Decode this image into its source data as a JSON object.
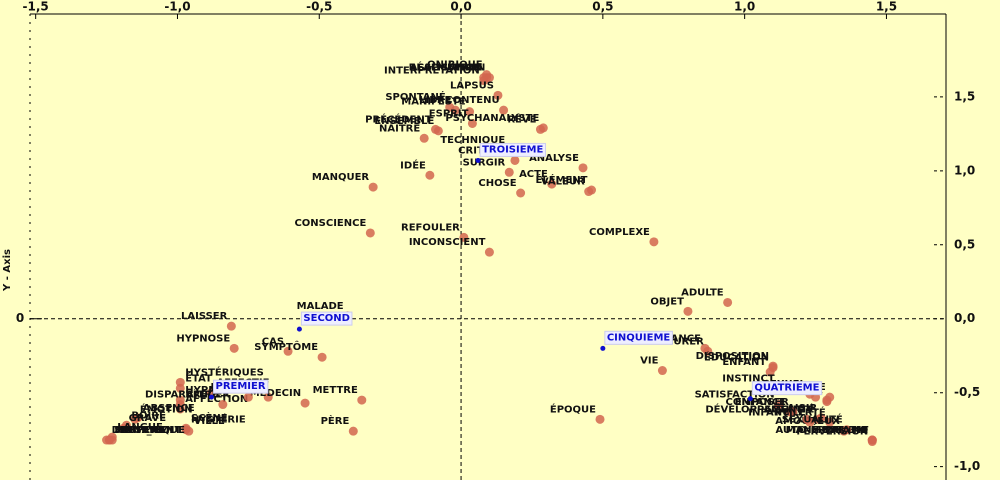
{
  "chart_data": {
    "type": "scatter",
    "y_label": "Y - Axis",
    "xlim": [
      -1.52,
      1.71
    ],
    "ylim": [
      -1.09,
      2.06
    ],
    "xticks": [
      {
        "value": -1.5,
        "label": "-1,5"
      },
      {
        "value": -1.0,
        "label": "-1,0"
      },
      {
        "value": -0.5,
        "label": "-0,5"
      },
      {
        "value": 0,
        "label": "0,0"
      },
      {
        "value": 0.5,
        "label": "0,5"
      },
      {
        "value": 1.0,
        "label": "1,0"
      },
      {
        "value": 1.5,
        "label": "1,5"
      }
    ],
    "yticks": [
      {
        "value": 1.5,
        "label": "1,5"
      },
      {
        "value": 1.0,
        "label": "1,0"
      },
      {
        "value": 0.5,
        "label": "0,5"
      },
      {
        "value": 0,
        "label": "0,0"
      },
      {
        "value": -0.5,
        "label": "-0,5"
      },
      {
        "value": -1.0,
        "label": "-1,0"
      }
    ],
    "yticks_left": [
      0
    ],
    "series": [
      {
        "color": "#d2664f",
        "labels": [
          "RÉALISATION",
          "ONIRIQUE",
          "MÉPRIS",
          "INTERPRÉTATION",
          "ASSOCIATION",
          "SPONTANÉ",
          "LAPSUS",
          "MANIFESTE",
          "CONTENU",
          "LIBRE",
          "ESPRIT",
          "RÊVE",
          "PSYCHANALYSTE",
          "PRÉCÉDENT",
          "ENSEMBLE",
          "NAÎTRE",
          "TECHNIQUE",
          "IDÉE",
          "CRITIQUE",
          "ANALYSE",
          "SURGIR",
          "MANQUER",
          "ÉLÉMENT",
          "ACTE",
          "VALEUR",
          "CHOSE",
          "CONSCIENCE",
          "REFOULER",
          "COMPLEXE",
          "INCONSCIENT",
          "OBJET",
          "ADULTE",
          "MALADE",
          "LAISSER",
          "HYPNOSE",
          "CAS",
          "SYMPTÔME",
          "TENDANCE",
          "PROCURER",
          "ÉDUCATION",
          "DISPOSITION",
          "ZONE",
          "VIE",
          "TENDRE",
          "ENFANT",
          "SEXUEL",
          "INSTINCT",
          "SEXE",
          "CHOIX",
          "PLAISIR",
          "SATISFACTION",
          "ENFANCE",
          "ACTIVITÉ",
          "PUBERTÉ",
          "COMPOSER",
          "AMOUREUX",
          "DÉVELOPPEMENT",
          "PARENT",
          "INFANTILE",
          "AUTO-ÉROTISME",
          "SEXUALITÉ",
          "MANIFESTATIO",
          "PERVERSION",
          "HYSTÉRIQUES",
          "ÉTAT",
          "AFFECTIF",
          "FILLE",
          "MÉDECIN",
          "METTRE",
          "HYPNOÏDES",
          "BREUER",
          "AFFECTION",
          "DISPARAÎTRE",
          "JEUNE",
          "ÉMOTION",
          "ABSENCE",
          "HYSTÉRIE",
          "SCÈNE",
          "BOIRE",
          "GRAVE",
          "VILLE",
          "DROIT_AMI",
          "MONUMENT",
          "LANGUE",
          "SERPENT",
          "ORGANIQUE",
          "PÈRE",
          "ÉPOQUE"
        ],
        "x": [
          0.09,
          0.09,
          0.08,
          0.08,
          0.1,
          -0.04,
          0.13,
          0.03,
          0.15,
          -0.02,
          0.04,
          0.28,
          0.29,
          -0.09,
          -0.08,
          -0.13,
          0.17,
          -0.11,
          0.19,
          0.43,
          0.17,
          -0.31,
          0.46,
          0.32,
          0.45,
          0.21,
          -0.32,
          0.01,
          0.68,
          0.1,
          0.8,
          0.94,
          -0.4,
          -0.81,
          -0.8,
          -0.61,
          -0.49,
          0.86,
          0.87,
          1.1,
          1.1,
          1.3,
          0.71,
          1.25,
          1.09,
          1.23,
          1.12,
          1.29,
          1.29,
          1.27,
          1.12,
          1.16,
          1.26,
          1.3,
          1.17,
          1.35,
          1.22,
          1.45,
          1.23,
          1.45,
          1.36,
          1.45,
          1.45,
          -0.99,
          -0.99,
          -0.88,
          -0.68,
          -0.55,
          -0.35,
          -0.99,
          -0.99,
          -0.99,
          -0.84,
          -0.75,
          -1.15,
          -1.14,
          -0.97,
          -0.97,
          -1.18,
          -1.19,
          -0.96,
          -1.25,
          -1.24,
          -1.23,
          -1.24,
          -1.23,
          -0.38,
          0.49
        ],
        "y": [
          1.63,
          1.65,
          1.63,
          1.61,
          1.63,
          1.43,
          1.51,
          1.4,
          1.41,
          1.41,
          1.32,
          1.28,
          1.29,
          1.28,
          1.27,
          1.22,
          1.14,
          0.97,
          1.07,
          1.02,
          0.99,
          0.89,
          0.87,
          0.91,
          0.86,
          0.85,
          0.58,
          0.55,
          0.52,
          0.45,
          0.05,
          0.11,
          0.02,
          -0.05,
          -0.2,
          -0.22,
          -0.26,
          -0.2,
          -0.22,
          -0.33,
          -0.32,
          -0.53,
          -0.35,
          -0.53,
          -0.36,
          -0.51,
          -0.47,
          -0.56,
          -0.55,
          -0.67,
          -0.58,
          -0.63,
          -0.68,
          -0.7,
          -0.63,
          -0.76,
          -0.68,
          -0.82,
          -0.7,
          -0.82,
          -0.75,
          -0.82,
          -0.83,
          -0.43,
          -0.47,
          -0.5,
          -0.53,
          -0.57,
          -0.55,
          -0.55,
          -0.58,
          -0.61,
          -0.58,
          -0.53,
          -0.68,
          -0.67,
          -0.75,
          -0.74,
          -0.72,
          -0.74,
          -0.76,
          -0.82,
          -0.82,
          -0.8,
          -0.82,
          -0.82,
          -0.76,
          -0.68
        ]
      },
      {
        "color": "#1010d0",
        "labels": [
          "PREMIER",
          "SECOND",
          "TROISIEME",
          "QUATRIEME",
          "CINQUIEME"
        ],
        "x": [
          -0.88,
          -0.57,
          0.06,
          1.02,
          0.5
        ],
        "y": [
          -0.53,
          -0.07,
          1.07,
          -0.54,
          -0.2
        ]
      }
    ]
  }
}
